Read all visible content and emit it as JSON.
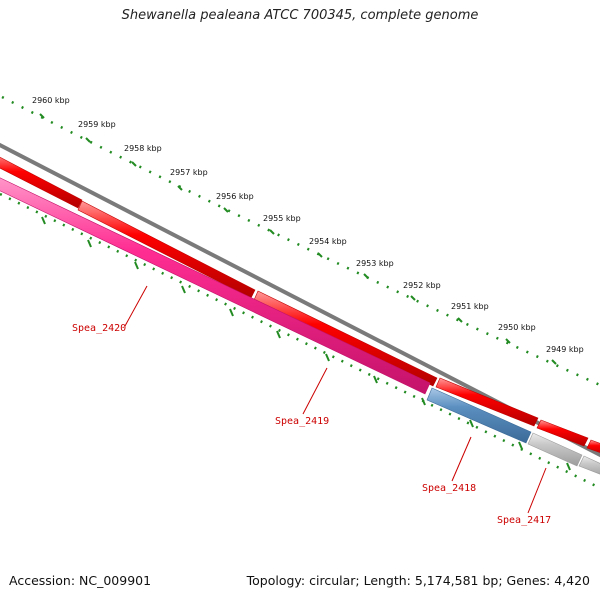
{
  "title": "Shewanella pealeana ATCC 700345, complete genome",
  "footer": {
    "accession": "Accession: NC_009901",
    "summary": "Topology: circular; Length: 5,174,581 bp; Genes: 4,420"
  },
  "ruler": {
    "ticks": [
      "2960 kbp",
      "2959 kbp",
      "2958 kbp",
      "2957 kbp",
      "2956 kbp",
      "2955 kbp",
      "2954 kbp",
      "2953 kbp",
      "2952 kbp",
      "2951 kbp",
      "2950 kbp",
      "2949 kbp"
    ]
  },
  "genes": [
    {
      "label": "Spea_2420",
      "strand": "reverse",
      "color": "#ff2d92"
    },
    {
      "label": "Spea_2419",
      "strand": "reverse",
      "color": "#ff2d92"
    },
    {
      "label": "Spea_2418",
      "strand": "reverse",
      "color": "#5b8fc0"
    },
    {
      "label": "Spea_2417",
      "strand": "reverse",
      "color": "#c8c8c8"
    }
  ],
  "colors": {
    "forward_track": "#ff0000",
    "backbone": "#808080",
    "scale_dots": "#228b22",
    "label_color": "#cc0000"
  }
}
